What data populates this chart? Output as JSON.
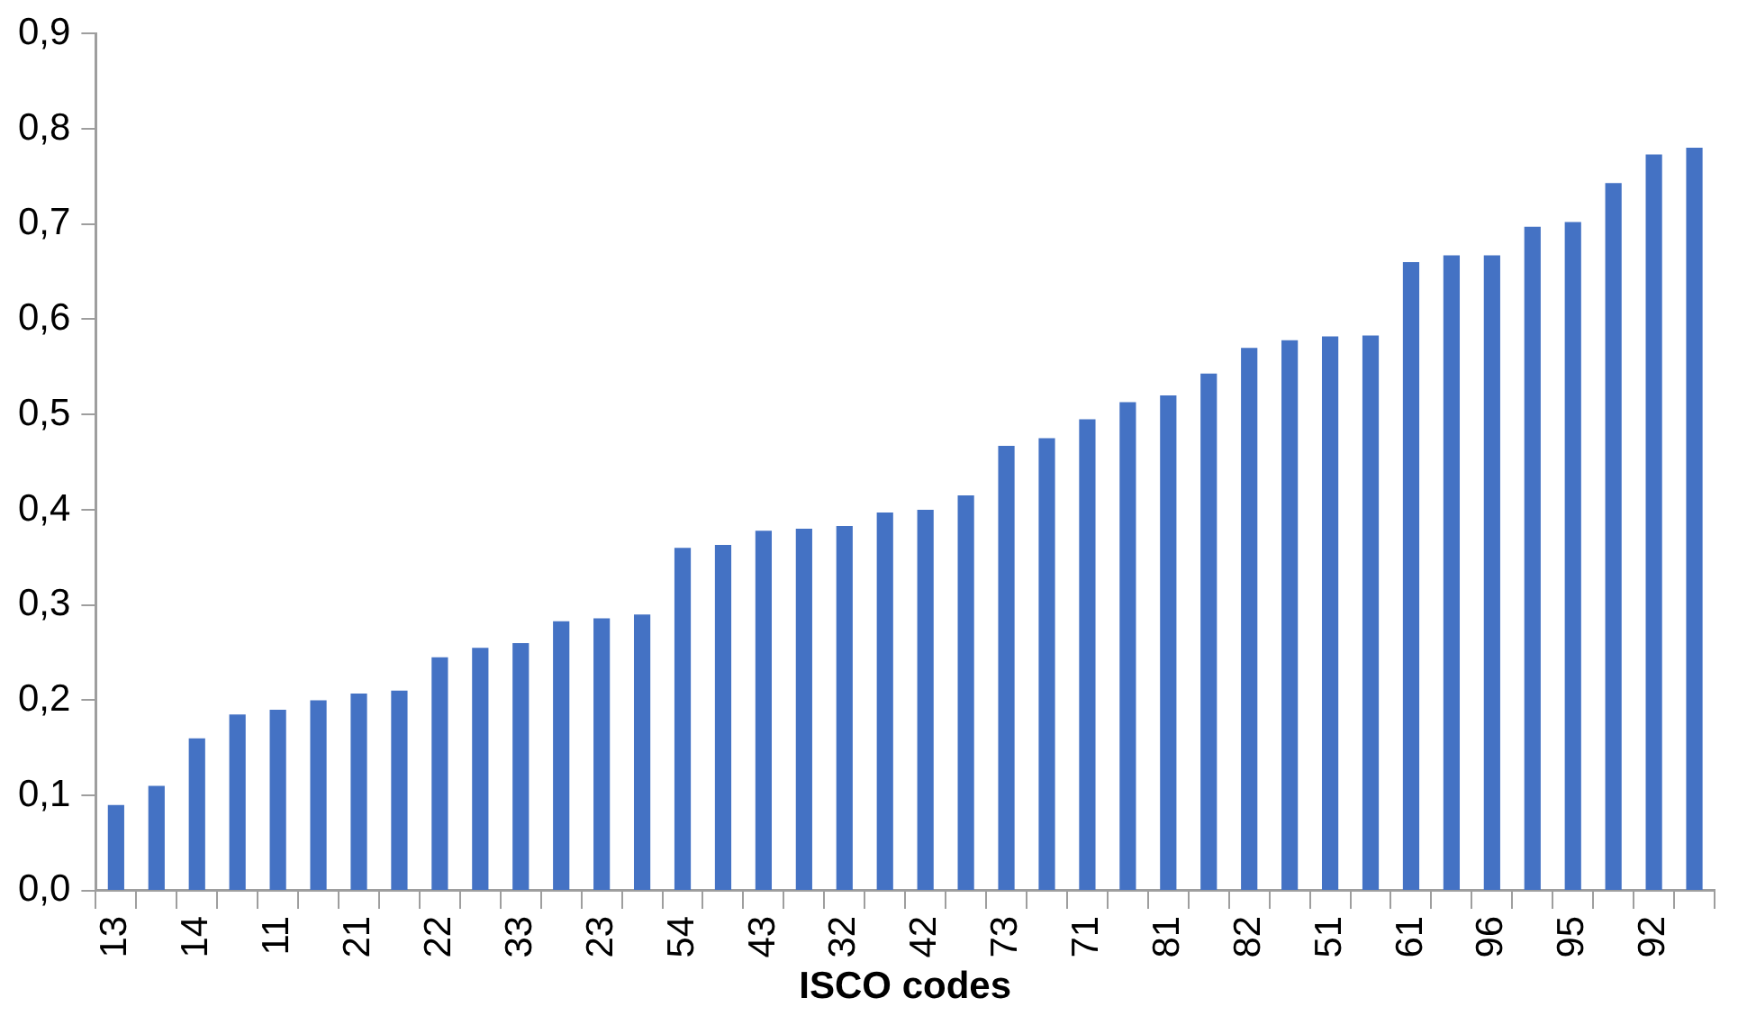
{
  "chart_data": {
    "type": "bar",
    "xlabel": "ISCO codes",
    "categories": [
      "13",
      null,
      "14",
      null,
      "11",
      null,
      "21",
      null,
      "22",
      null,
      "33",
      null,
      "23",
      null,
      "54",
      null,
      "43",
      null,
      "32",
      null,
      "42",
      null,
      "73",
      null,
      "71",
      null,
      "81",
      null,
      "82",
      null,
      "51",
      null,
      "61",
      null,
      "96",
      null,
      "95",
      null,
      "92",
      null
    ],
    "values": [
      0.09,
      0.11,
      0.16,
      0.185,
      0.19,
      0.2,
      0.207,
      0.21,
      0.245,
      0.255,
      0.26,
      0.283,
      0.286,
      0.29,
      0.36,
      0.363,
      0.378,
      0.38,
      0.383,
      0.397,
      0.4,
      0.415,
      0.467,
      0.475,
      0.495,
      0.513,
      0.52,
      0.543,
      0.57,
      0.578,
      0.582,
      0.583,
      0.66,
      0.667,
      0.667,
      0.697,
      0.702,
      0.743,
      0.773,
      0.78
    ],
    "color": "#4472c4",
    "ylim": [
      0,
      0.9
    ],
    "yticks": [
      {
        "value": 0,
        "label": "0,0"
      },
      {
        "value": 0.1,
        "label": "0,1"
      },
      {
        "value": 0.2,
        "label": "0,2"
      },
      {
        "value": 0.3,
        "label": "0,3"
      },
      {
        "value": 0.4,
        "label": "0,4"
      },
      {
        "value": 0.5,
        "label": "0,5"
      },
      {
        "value": 0.6,
        "label": "0,6"
      },
      {
        "value": 0.7,
        "label": "0,7"
      },
      {
        "value": 0.8,
        "label": "0,8"
      },
      {
        "value": 0.9,
        "label": "0,9"
      }
    ],
    "grid": false,
    "legend": false
  }
}
